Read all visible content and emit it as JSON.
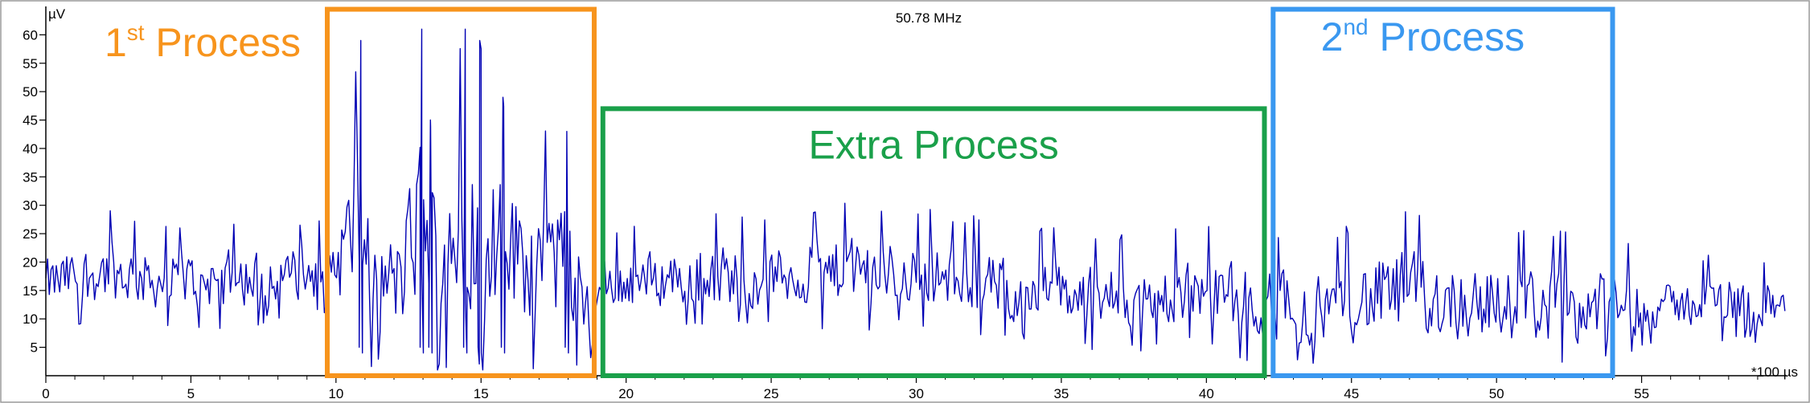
{
  "chart_data": {
    "type": "line",
    "title": "50.78 MHz",
    "y_unit": "µV",
    "x_unit": "*100 µs",
    "xlim": [
      0,
      60
    ],
    "ylim": [
      0,
      65
    ],
    "x_ticks": [
      0,
      5,
      10,
      15,
      20,
      25,
      30,
      35,
      40,
      45,
      50,
      55
    ],
    "y_ticks": [
      5,
      10,
      15,
      20,
      25,
      30,
      35,
      40,
      45,
      50,
      55,
      60
    ],
    "grid": false,
    "series": [
      {
        "color": "#0000b4",
        "sample_interval": 0.06,
        "sampled_envelope": [
          {
            "x": 0,
            "min": 8,
            "max": 26
          },
          {
            "x": 2,
            "min": 9,
            "max": 30
          },
          {
            "x": 4,
            "min": 8,
            "max": 27
          },
          {
            "x": 6,
            "min": 8,
            "max": 28
          },
          {
            "x": 8,
            "min": 9,
            "max": 28
          },
          {
            "x": 9.8,
            "min": 10,
            "max": 28
          },
          {
            "x": 10.8,
            "min": 1,
            "max": 59
          },
          {
            "x": 11.2,
            "min": 1,
            "max": 36
          },
          {
            "x": 12.2,
            "min": 1,
            "max": 35
          },
          {
            "x": 12.9,
            "min": 1,
            "max": 61
          },
          {
            "x": 13.2,
            "min": 1,
            "max": 45
          },
          {
            "x": 14.4,
            "min": 1,
            "max": 61
          },
          {
            "x": 14.9,
            "min": 1,
            "max": 59
          },
          {
            "x": 15.7,
            "min": 1,
            "max": 49
          },
          {
            "x": 17.9,
            "min": 1,
            "max": 43
          },
          {
            "x": 18.8,
            "min": 2,
            "max": 27
          },
          {
            "x": 20,
            "min": 8,
            "max": 27
          },
          {
            "x": 22.5,
            "min": 8,
            "max": 30
          },
          {
            "x": 25,
            "min": 8,
            "max": 29
          },
          {
            "x": 27.5,
            "min": 8,
            "max": 31
          },
          {
            "x": 30,
            "min": 8,
            "max": 30
          },
          {
            "x": 32.5,
            "min": 6,
            "max": 28
          },
          {
            "x": 35,
            "min": 5,
            "max": 26
          },
          {
            "x": 37.5,
            "min": 4,
            "max": 25
          },
          {
            "x": 40,
            "min": 5,
            "max": 27
          },
          {
            "x": 42.3,
            "min": 1,
            "max": 26
          },
          {
            "x": 44,
            "min": 1,
            "max": 25
          },
          {
            "x": 46.6,
            "min": 1,
            "max": 31
          },
          {
            "x": 48,
            "min": 1,
            "max": 29
          },
          {
            "x": 50,
            "min": 1,
            "max": 27
          },
          {
            "x": 52,
            "min": 1,
            "max": 26
          },
          {
            "x": 53.9,
            "min": 2,
            "max": 25
          },
          {
            "x": 56,
            "min": 6,
            "max": 20
          },
          {
            "x": 58.4,
            "min": 5,
            "max": 24
          },
          {
            "x": 60,
            "min": 6,
            "max": 19
          }
        ]
      }
    ],
    "annotations": [
      {
        "label": "1",
        "sup": "st",
        "suffix": " Process",
        "color": "#f7941d",
        "x0": 9.7,
        "x1": 18.9,
        "y_top": 64.5
      },
      {
        "label": "Extra Process",
        "sup": "",
        "suffix": "",
        "color": "#1aa04a",
        "x0": 19.2,
        "x1": 42.0,
        "y_top": 47
      },
      {
        "label": "2",
        "sup": "nd",
        "suffix": " Process",
        "color": "#3a98f0",
        "x0": 42.3,
        "x1": 54.0,
        "y_top": 64.5
      }
    ]
  }
}
